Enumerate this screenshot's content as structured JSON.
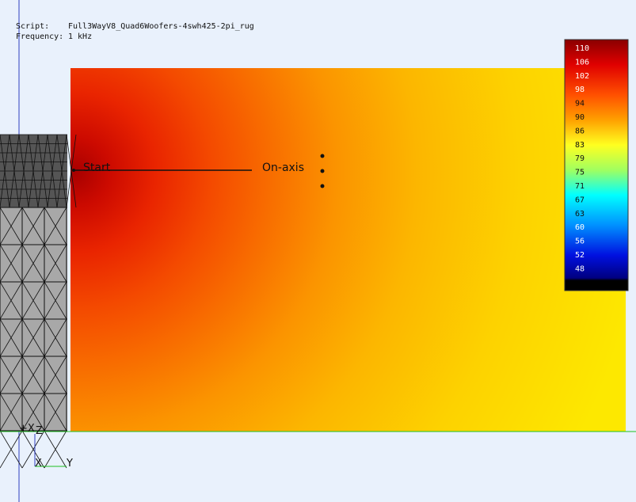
{
  "header": {
    "script_label": "Script:",
    "script_value": "Full3WayV8_Quad6Woofers-4swh425-2pi_rug",
    "frequency_label": "Frequency:",
    "frequency_value": "1 kHz"
  },
  "colorbar": {
    "ticks": [
      "110",
      "106",
      "102",
      "98",
      "94",
      "90",
      "86",
      "83",
      "79",
      "75",
      "71",
      "67",
      "63",
      "60",
      "56",
      "52",
      "48"
    ]
  },
  "labels": {
    "start": "Start",
    "on_axis": "On-axis"
  },
  "axes": {
    "plus_x": "+X",
    "z": "Z",
    "x": "X",
    "y": "Y"
  }
}
